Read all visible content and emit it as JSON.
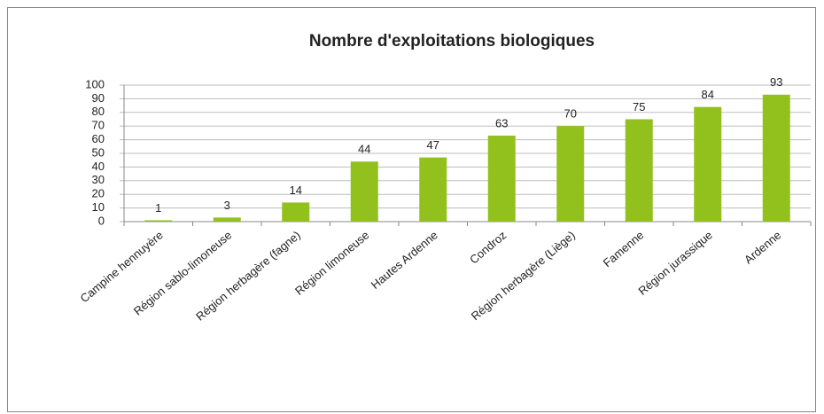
{
  "chart_data": {
    "type": "bar",
    "title": "Nombre d'exploitations biologiques",
    "categories": [
      "Campine hennuyère",
      "Région sablo-limoneuse",
      "Région herbagère (fagne)",
      "Région limoneuse",
      "Hautes Ardenne",
      "Condroz",
      "Région herbagère (Liège)",
      "Famenne",
      "Région jurassique",
      "Ardenne"
    ],
    "values": [
      1,
      3,
      14,
      44,
      47,
      63,
      70,
      75,
      84,
      93
    ],
    "color": "#92c11e",
    "ylim": [
      0,
      100
    ],
    "yticks": [
      0,
      10,
      20,
      30,
      40,
      50,
      60,
      70,
      80,
      90,
      100
    ],
    "grid": true
  }
}
